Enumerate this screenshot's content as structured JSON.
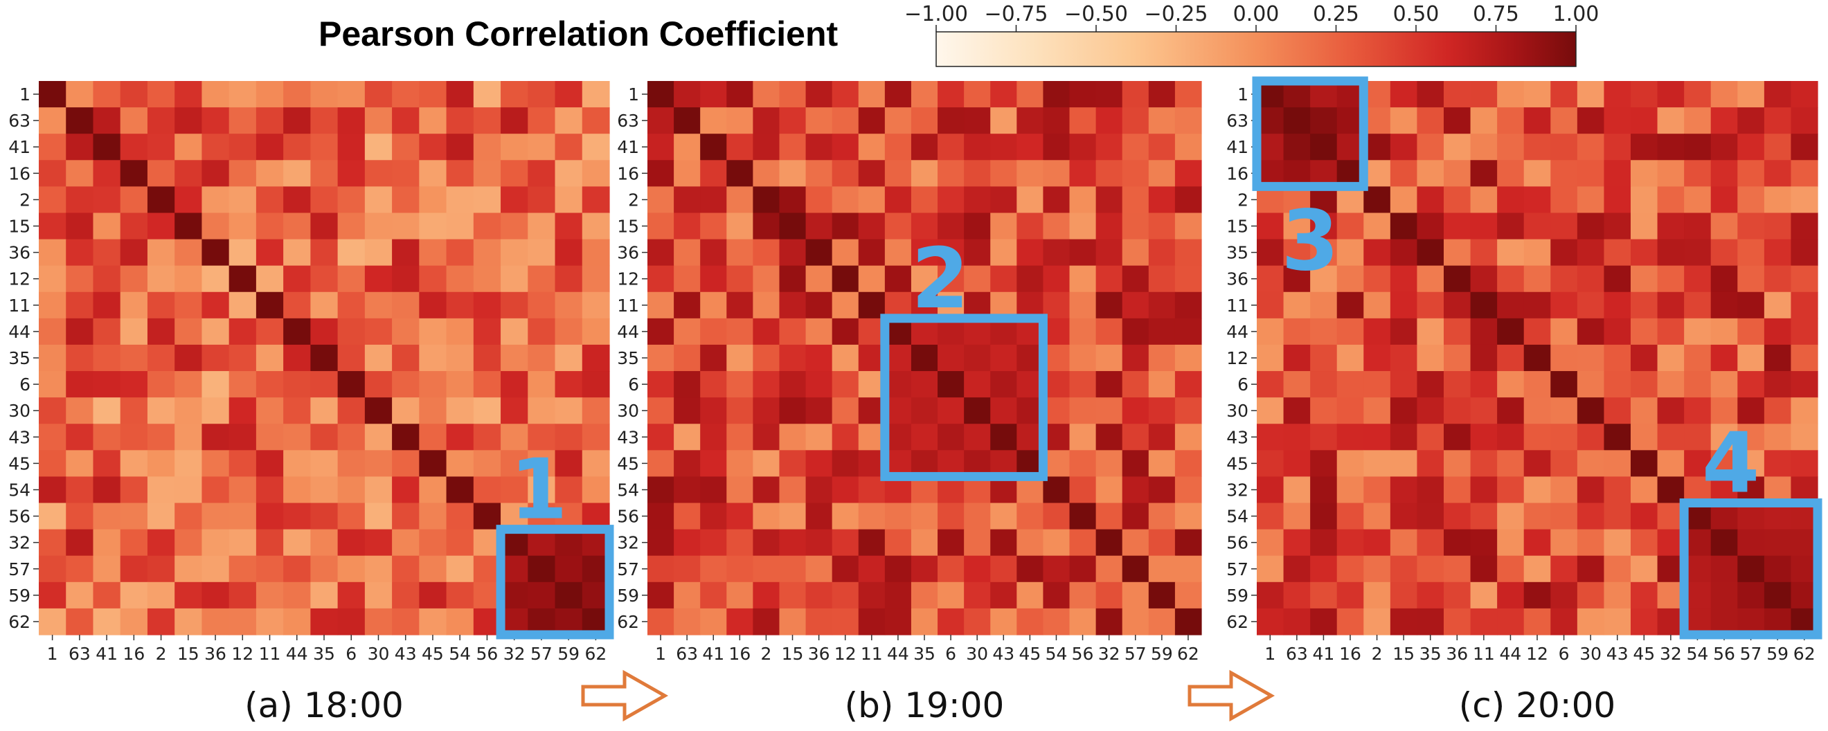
{
  "title": "Pearson Correlation Coefficient",
  "colorbar": {
    "ticks": [
      -1.0,
      -0.75,
      -0.5,
      -0.25,
      0.0,
      0.25,
      0.5,
      0.75,
      1.0
    ],
    "tick_labels": [
      "−1.00",
      "−0.75",
      "−0.50",
      "−0.25",
      "0.00",
      "0.25",
      "0.50",
      "0.75",
      "1.00"
    ],
    "colormap": "OrRd",
    "range": [
      -1,
      1
    ]
  },
  "colors": {
    "annotation_box": "#4fa9e6",
    "arrow": "#e07a3a",
    "diagonal": "#7a0d0d",
    "low": "#fff4e3",
    "high": "#7a0d0d"
  },
  "chart_data": [
    {
      "type": "heatmap",
      "caption": "(a) 18:00",
      "labels": [
        "1",
        "63",
        "41",
        "16",
        "2",
        "15",
        "36",
        "12",
        "11",
        "44",
        "35",
        "6",
        "30",
        "43",
        "45",
        "54",
        "56",
        "32",
        "57",
        "59",
        "62"
      ],
      "value_range": [
        -1,
        1
      ],
      "background_level": 0.25,
      "blocks": [
        {
          "label": "1",
          "rows": [
            17,
            20
          ],
          "cols": [
            17,
            20
          ],
          "level": 0.85
        }
      ]
    },
    {
      "type": "heatmap",
      "caption": "(b) 19:00",
      "labels": [
        "1",
        "63",
        "41",
        "16",
        "2",
        "15",
        "36",
        "12",
        "11",
        "44",
        "35",
        "6",
        "30",
        "43",
        "45",
        "54",
        "56",
        "32",
        "57",
        "59",
        "62"
      ],
      "value_range": [
        -1,
        1
      ],
      "background_level": 0.4,
      "blocks": [
        {
          "label": "2",
          "rows": [
            9,
            14
          ],
          "cols": [
            9,
            14
          ],
          "level": 0.72
        }
      ]
    },
    {
      "type": "heatmap",
      "caption": "(c) 20:00",
      "labels": [
        "1",
        "63",
        "41",
        "16",
        "2",
        "15",
        "35",
        "36",
        "11",
        "44",
        "12",
        "6",
        "30",
        "43",
        "45",
        "32",
        "54",
        "56",
        "57",
        "59",
        "62"
      ],
      "value_range": [
        -1,
        1
      ],
      "background_level": 0.4,
      "blocks": [
        {
          "label": "3",
          "rows": [
            0,
            3
          ],
          "cols": [
            0,
            3
          ],
          "level": 0.85
        },
        {
          "label": "4",
          "rows": [
            16,
            20
          ],
          "cols": [
            16,
            20
          ],
          "level": 0.78
        }
      ]
    }
  ]
}
